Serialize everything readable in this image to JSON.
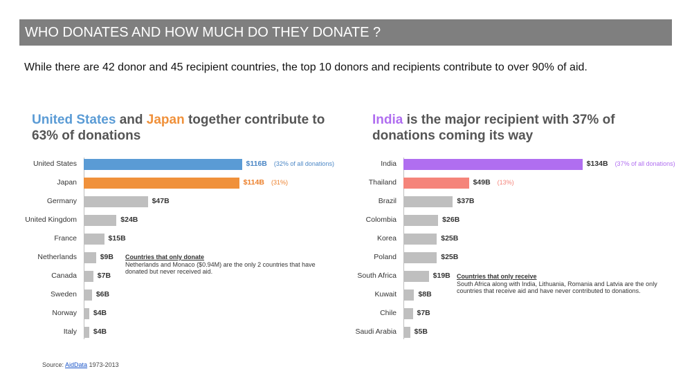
{
  "header": {
    "title": "WHO DONATES AND HOW MUCH DO THEY DONATE ?",
    "subtitle": "While there are 42 donor and 45 recipient countries, the top 10 donors and recipients contribute to over 90% of aid."
  },
  "colors": {
    "us": "#5a9bd5",
    "japan": "#f0913b",
    "india": "#b06ef0",
    "thailand": "#f5847a",
    "gray": "#bfbfbf",
    "title_gray": "#555555"
  },
  "donors_panel": {
    "title_part1": "United States",
    "title_part2": " and ",
    "title_part3": "Japan",
    "title_part4": " together contribute to 63% of donations",
    "note_title": "Countries that only donate",
    "note_body": "Netherlands and Monaco ($0.94M) are the only 2 countries that have donated but never received aid."
  },
  "recipients_panel": {
    "title_part1": "India",
    "title_part2": " is the major recipient with 37% of donations coming its way",
    "note_title": "Countries that only receive",
    "note_body": "South Africa along with India, Lithuania, Romania and Latvia are the only countries that receive aid and have never contributed to donations."
  },
  "source": {
    "prefix": "Source: ",
    "link": "AidData",
    "suffix": " 1973-2013"
  },
  "chart_data": [
    {
      "type": "bar",
      "orientation": "horizontal",
      "title": "United States and Japan together contribute to 63% of donations",
      "unit": "$B",
      "categories": [
        "United States",
        "Japan",
        "Germany",
        "United Kingdom",
        "France",
        "Netherlands",
        "Canada",
        "Sweden",
        "Norway",
        "Italy"
      ],
      "values": [
        116,
        114,
        47,
        24,
        15,
        9,
        7,
        6,
        4,
        4
      ],
      "value_labels": [
        "$116B",
        "$114B",
        "$47B",
        "$24B",
        "$15B",
        "$9B",
        "$7B",
        "$6B",
        "$4B",
        "$4B"
      ],
      "annotations": [
        "(32% of all donations)",
        "(31%)",
        "",
        "",
        "",
        "",
        "",
        "",
        "",
        ""
      ],
      "bar_colors": [
        "#5a9bd5",
        "#f0913b",
        "#bfbfbf",
        "#bfbfbf",
        "#bfbfbf",
        "#bfbfbf",
        "#bfbfbf",
        "#bfbfbf",
        "#bfbfbf",
        "#bfbfbf"
      ],
      "label_colors": [
        "#4a86c5",
        "#ec7f2a",
        "#333333",
        "#333333",
        "#333333",
        "#333333",
        "#333333",
        "#333333",
        "#333333",
        "#333333"
      ],
      "grid": false,
      "legend": "none"
    },
    {
      "type": "bar",
      "orientation": "horizontal",
      "title": "India is the major recipient with 37% of donations coming its way",
      "unit": "$B",
      "categories": [
        "India",
        "Thailand",
        "Brazil",
        "Colombia",
        "Korea",
        "Poland",
        "South Africa",
        "Kuwait",
        "Chile",
        "Saudi Arabia"
      ],
      "values": [
        134,
        49,
        37,
        26,
        25,
        25,
        19,
        8,
        7,
        5
      ],
      "value_labels": [
        "$134B",
        "$49B",
        "$37B",
        "$26B",
        "$25B",
        "$25B",
        "$19B",
        "$8B",
        "$7B",
        "$5B"
      ],
      "annotations": [
        "(37% of all donations)",
        "(13%)",
        "",
        "",
        "",
        "",
        "",
        "",
        "",
        ""
      ],
      "bar_colors": [
        "#b06ef0",
        "#f5847a",
        "#bfbfbf",
        "#bfbfbf",
        "#bfbfbf",
        "#bfbfbf",
        "#bfbfbf",
        "#bfbfbf",
        "#bfbfbf",
        "#bfbfbf"
      ],
      "label_colors": [
        "#333333",
        "#333333",
        "#333333",
        "#333333",
        "#333333",
        "#333333",
        "#333333",
        "#333333",
        "#333333",
        "#333333"
      ],
      "annotation_colors": [
        "#b06ef0",
        "#f5847a"
      ],
      "grid": false,
      "legend": "none"
    }
  ]
}
